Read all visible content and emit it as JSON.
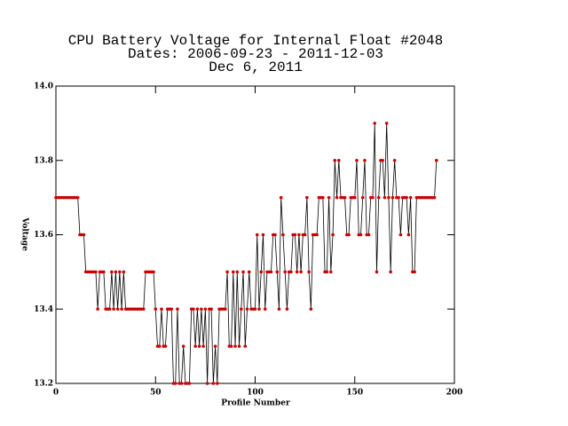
{
  "chart_data": {
    "type": "line",
    "title": [
      "CPU Battery Voltage for Internal Float #2048",
      "Dates:  2006-09-23 -  2011-12-03",
      "Dec  6, 2011"
    ],
    "xlabel": "Profile Number",
    "ylabel": "Voltage",
    "color": "#000000",
    "marker_color": "#cc0000",
    "xlim": [
      0,
      200
    ],
    "xticks": [
      0,
      50,
      100,
      150,
      200
    ],
    "ylim": [
      13.2,
      14.0
    ],
    "yticks": [
      13.2,
      13.4,
      13.6,
      13.8,
      {
        "value": 14.0,
        "label": "14.0"
      }
    ],
    "values": [
      13.7,
      13.7,
      13.7,
      13.7,
      13.7,
      13.7,
      13.7,
      13.7,
      13.7,
      13.7,
      13.7,
      13.7,
      13.6,
      13.6,
      13.6,
      13.5,
      13.5,
      13.5,
      13.5,
      13.5,
      13.5,
      13.4,
      13.5,
      13.5,
      13.5,
      13.4,
      13.4,
      13.4,
      13.5,
      13.4,
      13.5,
      13.4,
      13.5,
      13.4,
      13.5,
      13.4,
      13.4,
      13.4,
      13.4,
      13.4,
      13.4,
      13.4,
      13.4,
      13.4,
      13.4,
      13.5,
      13.5,
      13.5,
      13.5,
      13.5,
      13.4,
      13.3,
      13.3,
      13.4,
      13.3,
      13.3,
      13.4,
      13.4,
      13.4,
      13.2,
      13.2,
      13.4,
      13.2,
      13.2,
      13.3,
      13.2,
      13.2,
      13.2,
      13.4,
      13.4,
      13.3,
      13.4,
      13.3,
      13.4,
      13.3,
      13.4,
      13.2,
      13.4,
      13.4,
      13.2,
      13.3,
      13.2,
      13.4,
      13.4,
      13.4,
      13.4,
      13.5,
      13.3,
      13.3,
      13.5,
      13.3,
      13.5,
      13.3,
      13.4,
      13.5,
      13.3,
      13.4,
      13.5,
      13.4,
      13.4,
      13.4,
      13.6,
      13.4,
      13.5,
      13.6,
      13.4,
      13.5,
      13.5,
      13.5,
      13.6,
      13.6,
      13.5,
      13.4,
      13.7,
      13.6,
      13.5,
      13.4,
      13.5,
      13.5,
      13.6,
      13.6,
      13.5,
      13.6,
      13.5,
      13.6,
      13.6,
      13.7,
      13.5,
      13.4,
      13.6,
      13.6,
      13.6,
      13.7,
      13.7,
      13.7,
      13.5,
      13.5,
      13.7,
      13.5,
      13.6,
      13.8,
      13.7,
      13.8,
      13.7,
      13.7,
      13.7,
      13.6,
      13.6,
      13.7,
      13.7,
      13.7,
      13.8,
      13.6,
      13.6,
      13.7,
      13.8,
      13.6,
      13.6,
      13.7,
      13.7,
      13.9,
      13.5,
      13.7,
      13.8,
      13.8,
      13.7,
      13.9,
      13.7,
      13.5,
      13.7,
      13.8,
      13.7,
      13.7,
      13.6,
      13.7,
      13.7,
      13.7,
      13.6,
      13.7,
      13.5,
      13.5,
      13.7,
      13.7,
      13.7,
      13.7,
      13.7,
      13.7,
      13.7,
      13.7,
      13.7,
      13.7,
      13.8
    ]
  }
}
